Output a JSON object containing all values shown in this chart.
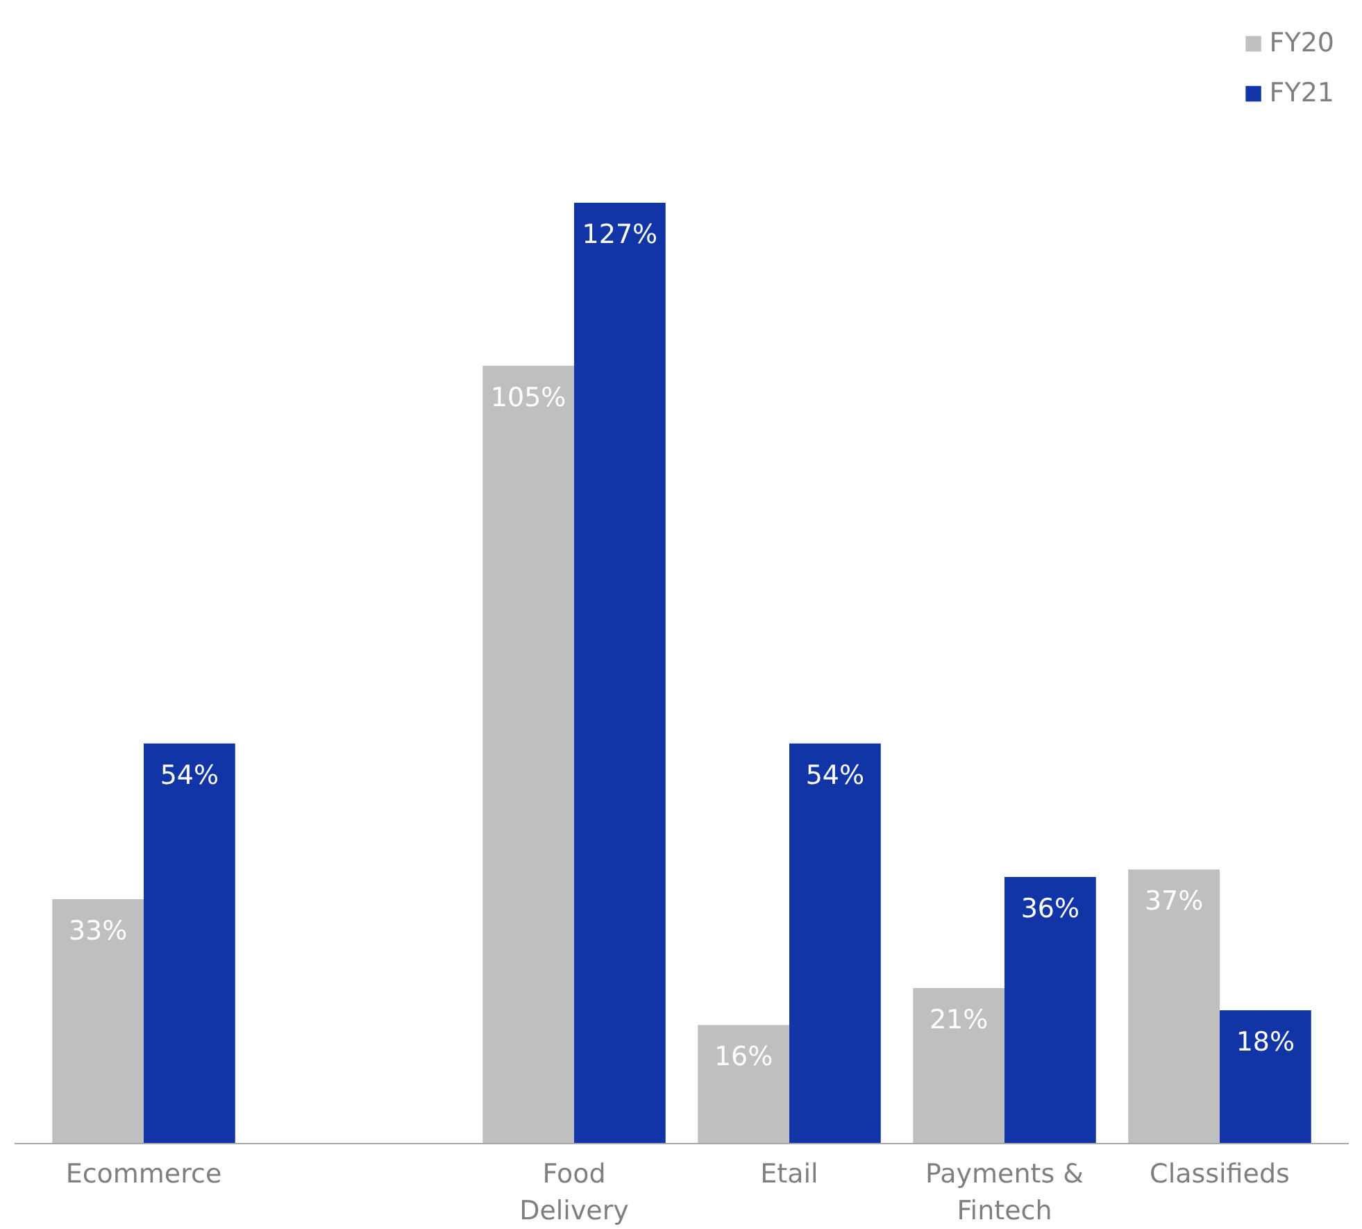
{
  "chart_data": {
    "type": "bar",
    "categories": [
      "Ecommerce",
      null,
      "Food Delivery",
      "Etail",
      "Payments & Fintech",
      "Classifieds"
    ],
    "series": [
      {
        "name": "FY20",
        "color": "#bfbfbf",
        "values": [
          33,
          null,
          105,
          16,
          21,
          37
        ],
        "value_labels": [
          "33%",
          null,
          "105%",
          "16%",
          "21%",
          "37%"
        ]
      },
      {
        "name": "FY21",
        "color": "#1135a6",
        "values": [
          54,
          null,
          127,
          54,
          36,
          18
        ],
        "value_labels": [
          "54%",
          null,
          "127%",
          "54%",
          "36%",
          "18%"
        ]
      }
    ],
    "legend": "top right",
    "grid": false
  }
}
